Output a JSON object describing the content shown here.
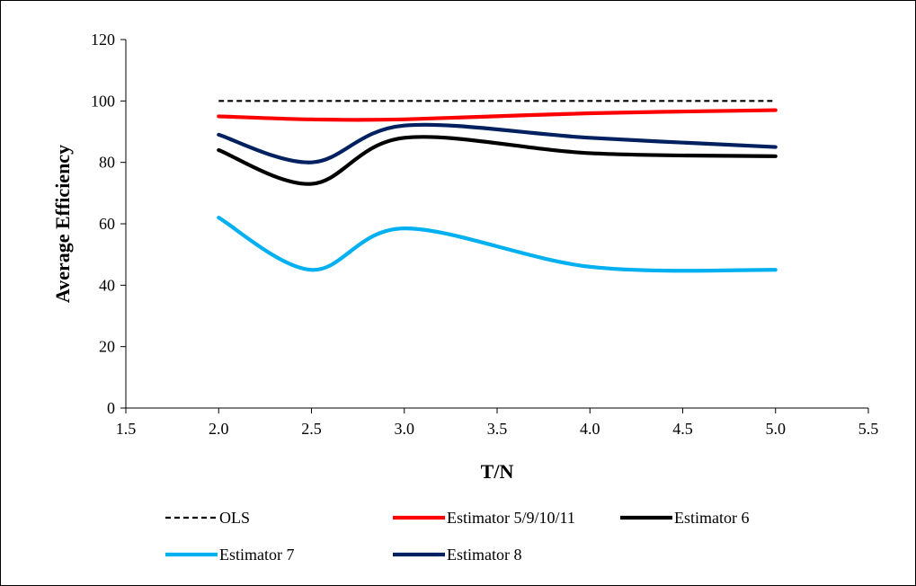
{
  "chart_data": {
    "type": "line",
    "title": "",
    "xlabel": "T/N",
    "ylabel": "Average Efficiency",
    "xlim": [
      1.5,
      5.5
    ],
    "ylim": [
      0,
      120
    ],
    "x_ticks": [
      "1.5",
      "2.0",
      "2.5",
      "3.0",
      "3.5",
      "4.0",
      "4.5",
      "5.0",
      "5.5"
    ],
    "y_ticks": [
      "0",
      "20",
      "40",
      "60",
      "80",
      "100",
      "120"
    ],
    "grid": false,
    "legend_position": "bottom",
    "x": [
      2.0,
      2.5,
      3.0,
      4.0,
      5.0
    ],
    "series": [
      {
        "name": "OLS",
        "color": "#000000",
        "style": "dashed",
        "values": [
          100,
          100,
          100,
          100,
          100
        ]
      },
      {
        "name": "Estimator 5/9/10/11",
        "color": "#ff0000",
        "style": "solid",
        "values": [
          95,
          94,
          94,
          96,
          97
        ]
      },
      {
        "name": "Estimator 6",
        "color": "#000000",
        "style": "solid",
        "values": [
          84,
          73,
          88,
          83,
          82
        ]
      },
      {
        "name": "Estimator 7",
        "color": "#00b0f0",
        "style": "solid",
        "values": [
          62,
          45,
          58.5,
          46,
          45
        ]
      },
      {
        "name": "Estimator 8",
        "color": "#002060",
        "style": "solid",
        "values": [
          89,
          80,
          92,
          88,
          85
        ]
      }
    ]
  }
}
